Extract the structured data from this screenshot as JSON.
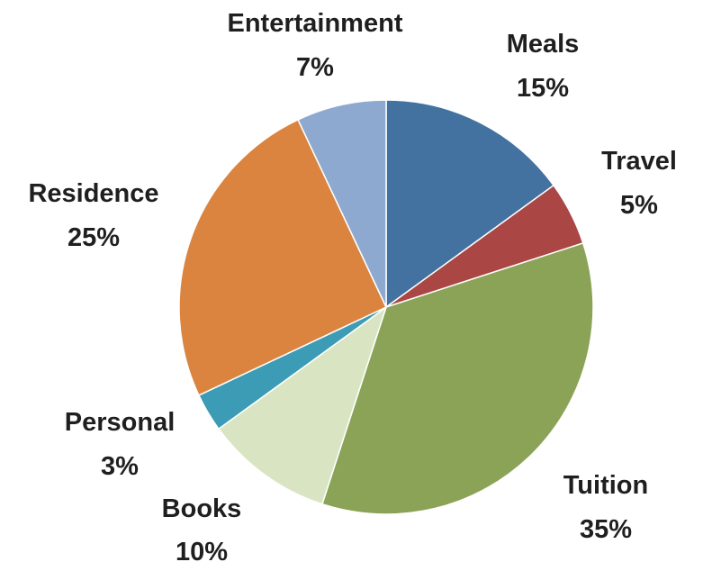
{
  "chart_data": {
    "type": "pie",
    "slices": [
      {
        "label": "Meals",
        "value": 15,
        "display": "15%",
        "color": "#4472a0"
      },
      {
        "label": "Travel",
        "value": 5,
        "display": "5%",
        "color": "#aa4644"
      },
      {
        "label": "Tuition",
        "value": 35,
        "display": "35%",
        "color": "#8aa356"
      },
      {
        "label": "Books",
        "value": 10,
        "display": "10%",
        "color": "#d9e5c2"
      },
      {
        "label": "Personal",
        "value": 3,
        "display": "3%",
        "color": "#3c9cb5"
      },
      {
        "label": "Residence",
        "value": 25,
        "display": "25%",
        "color": "#db8440"
      },
      {
        "label": "Entertainment",
        "value": 7,
        "display": "7%",
        "color": "#8ea9d0"
      }
    ]
  }
}
